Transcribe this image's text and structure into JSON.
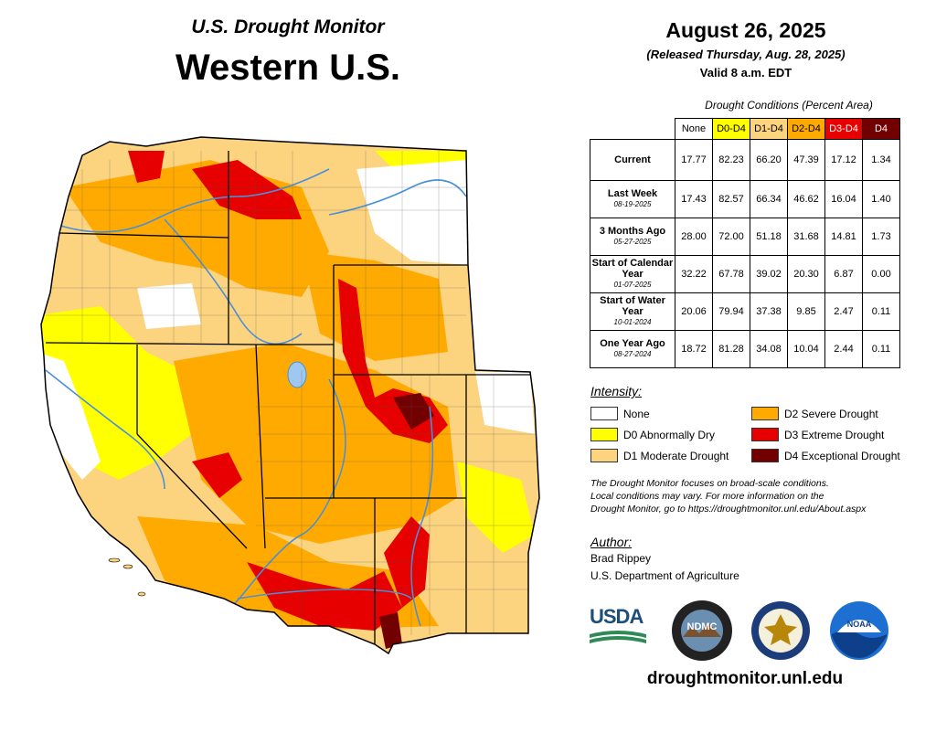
{
  "header": {
    "title_small": "U.S. Drought Monitor",
    "title_big": "Western U.S.",
    "date": "August 26, 2025",
    "released": "(Released Thursday, Aug. 28, 2025)",
    "valid": "Valid 8 a.m. EDT"
  },
  "table": {
    "caption": "Drought Conditions (Percent Area)",
    "columns": [
      "None",
      "D0-D4",
      "D1-D4",
      "D2-D4",
      "D3-D4",
      "D4"
    ],
    "column_colors": [
      "#ffffff",
      "#ffff00",
      "#fcd37f",
      "#ffaa00",
      "#e60000",
      "#730000"
    ],
    "rows": [
      {
        "label": "Current",
        "sublabel": "",
        "values": [
          "17.77",
          "82.23",
          "66.20",
          "47.39",
          "17.12",
          "1.34"
        ]
      },
      {
        "label": "Last Week",
        "sublabel": "08-19-2025",
        "values": [
          "17.43",
          "82.57",
          "66.34",
          "46.62",
          "16.04",
          "1.40"
        ]
      },
      {
        "label": "3 Months Ago",
        "sublabel": "05-27-2025",
        "values": [
          "28.00",
          "72.00",
          "51.18",
          "31.68",
          "14.81",
          "1.73"
        ]
      },
      {
        "label": "Start of Calendar Year",
        "sublabel": "01-07-2025",
        "values": [
          "32.22",
          "67.78",
          "39.02",
          "20.30",
          "6.87",
          "0.00"
        ]
      },
      {
        "label": "Start of Water Year",
        "sublabel": "10-01-2024",
        "values": [
          "20.06",
          "79.94",
          "37.38",
          "9.85",
          "2.47",
          "0.11"
        ]
      },
      {
        "label": "One Year Ago",
        "sublabel": "08-27-2024",
        "values": [
          "18.72",
          "81.28",
          "34.08",
          "10.04",
          "2.44",
          "0.11"
        ]
      }
    ]
  },
  "legend": {
    "title": "Intensity:",
    "items": [
      {
        "label": "None",
        "color": "#ffffff"
      },
      {
        "label": "D0 Abnormally Dry",
        "color": "#ffff00"
      },
      {
        "label": "D1 Moderate Drought",
        "color": "#fcd37f"
      },
      {
        "label": "D2 Severe Drought",
        "color": "#ffaa00"
      },
      {
        "label": "D3 Extreme Drought",
        "color": "#e60000"
      },
      {
        "label": "D4 Exceptional Drought",
        "color": "#730000"
      }
    ]
  },
  "note": {
    "line1": "The Drought Monitor focuses on broad-scale conditions.",
    "line2": "Local conditions may vary. For more information on the",
    "line3": "Drought Monitor, go to https://droughtmonitor.unl.edu/About.aspx"
  },
  "author": {
    "title": "Author:",
    "name": "Brad Rippey",
    "org": "U.S. Department of Agriculture"
  },
  "logos": {
    "usda": "USDA",
    "ndmc": "NDMC",
    "noaa": "NOAA"
  },
  "footer_url": "droughtmonitor.unl.edu",
  "colors": {
    "none": "#ffffff",
    "d0": "#ffff00",
    "d1": "#fcd37f",
    "d2": "#ffaa00",
    "d3": "#e60000",
    "d4": "#730000",
    "river": "#4a90d9"
  }
}
